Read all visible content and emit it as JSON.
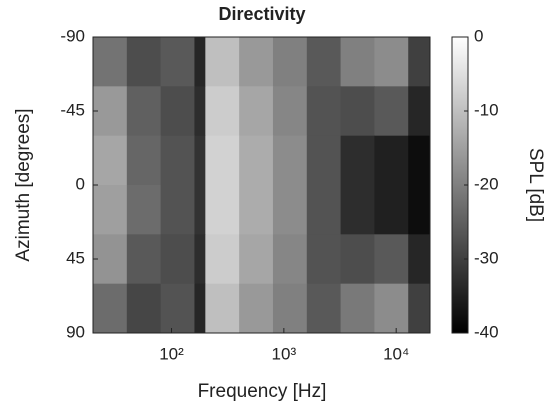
{
  "chart_data": {
    "type": "heatmap",
    "title": "Directivity",
    "x_label": "Frequency [Hz]",
    "y_label": "Azimuth [degrees]",
    "colorbar_label": "SPL [dB]",
    "xscale": "log",
    "xlim": [
      20,
      20000
    ],
    "xticks": [
      {
        "value": 100,
        "label": "10²"
      },
      {
        "value": 1000,
        "label": "10³"
      },
      {
        "value": 10000,
        "label": "10⁴"
      }
    ],
    "ylim": [
      -90,
      90
    ],
    "yticks": [
      -90,
      -45,
      0,
      45,
      90
    ],
    "y_reversed": true,
    "clim": [
      -40,
      0
    ],
    "cticks": [
      0,
      -10,
      -20,
      -30,
      -40
    ],
    "colormap": [
      "#000000",
      "#ffffff"
    ],
    "xbins": [
      20,
      40,
      80,
      160,
      200,
      400,
      800,
      1600,
      3200,
      6400,
      12800,
      20000
    ],
    "ybins": [
      -90,
      -60,
      -30,
      0,
      30,
      60,
      90
    ],
    "values": [
      [
        -22,
        -28,
        -26,
        -34,
        -10,
        -16,
        -20,
        -26,
        -20,
        -18,
        -30
      ],
      [
        -16,
        -25,
        -28,
        -33,
        -8,
        -14,
        -19,
        -27,
        -28,
        -26,
        -34
      ],
      [
        -14,
        -24,
        -27,
        -32,
        -7,
        -13,
        -18,
        -27,
        -33,
        -35,
        -38
      ],
      [
        -15,
        -23,
        -27,
        -32,
        -7,
        -13,
        -18,
        -27,
        -33,
        -35,
        -38
      ],
      [
        -17,
        -26,
        -28,
        -33,
        -8,
        -14,
        -19,
        -27,
        -28,
        -26,
        -34
      ],
      [
        -23,
        -29,
        -27,
        -34,
        -10,
        -16,
        -20,
        -26,
        -21,
        -18,
        -30
      ]
    ]
  }
}
